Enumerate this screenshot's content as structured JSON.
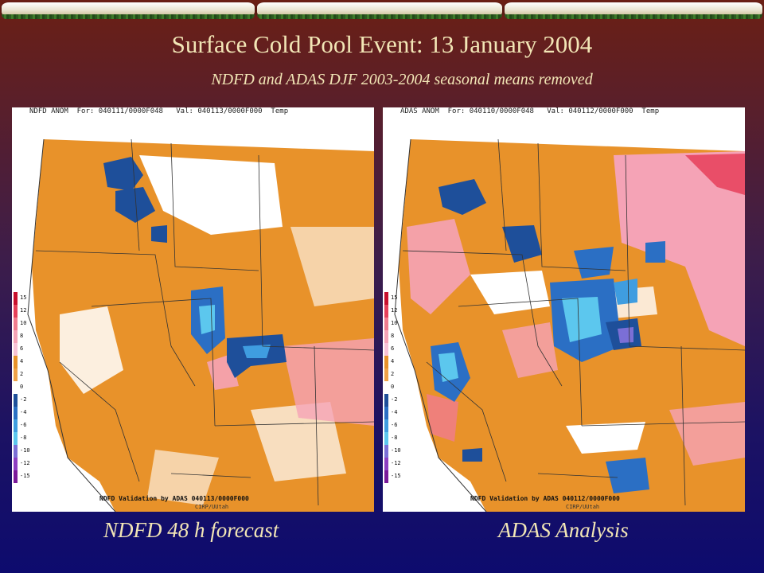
{
  "slide": {
    "title": "Surface Cold Pool Event: 13 January 2004",
    "subtitle": "NDFD and ADAS DJF 2003-2004 seasonal means removed"
  },
  "legend": {
    "ticks": [
      "15",
      "12",
      "10",
      "8",
      "6",
      "4",
      "2",
      "0",
      "-2",
      "-4",
      "-6",
      "-8",
      "-10",
      "-12",
      "-15"
    ],
    "colors": [
      "#c8102e",
      "#e6405a",
      "#f07c8e",
      "#f5a3b6",
      "#f7c2d6",
      "#e8922a",
      "#f0a248",
      "#ffffff",
      "#1e4f9a",
      "#2b6fc4",
      "#3f9de0",
      "#5cc7ee",
      "#7b6fd6",
      "#8d3ec2",
      "#7a1a9a"
    ]
  },
  "panels": [
    {
      "id": "ndfd",
      "header": "NDFD ANOM  For: 040111/0000F048   Val: 040113/0000F000  Temp",
      "footer": "NDFD Validation by ADAS 040113/0000F000",
      "credit": "CIRP/UUtah",
      "caption": "NDFD 48 h forecast"
    },
    {
      "id": "adas",
      "header": "ADAS ANOM  For: 040110/0000F048   Val: 040112/0000F000  Temp",
      "footer": "NDFD Validation by ADAS 040112/0000F000",
      "credit": "CIRP/UUtah",
      "caption": "ADAS Analysis"
    }
  ],
  "colors": {
    "warm_orange": "#e8922a",
    "cold_blue": "#2b6fc4",
    "deep_blue": "#1e4f9a",
    "pink": "#f5a3b6",
    "title_text": "#f2e6b6"
  }
}
